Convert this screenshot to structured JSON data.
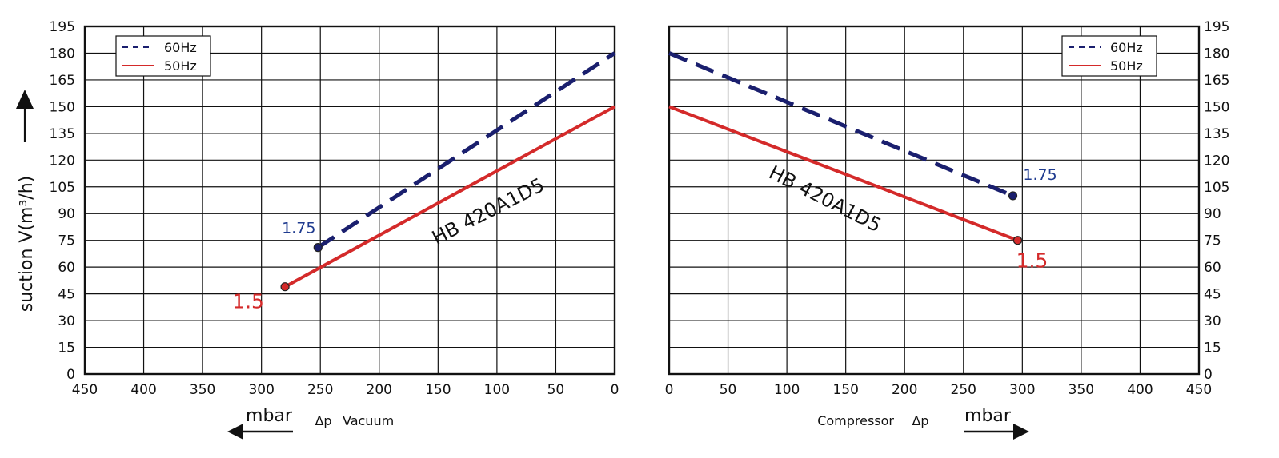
{
  "chart_data": [
    {
      "type": "line",
      "name": "vacuum",
      "xlabel_unit": "mbar",
      "xlabel_symbol": "Δp",
      "xlabel_text": "Vacuum",
      "ylabel": "suction V(m³/h)",
      "xlim": [
        450,
        0
      ],
      "x_reversed": true,
      "ylim": [
        0,
        195
      ],
      "x_ticks": [
        450,
        400,
        350,
        300,
        250,
        200,
        150,
        100,
        50,
        0
      ],
      "y_ticks": [
        0,
        15,
        30,
        45,
        60,
        75,
        90,
        105,
        120,
        135,
        150,
        165,
        180,
        195
      ],
      "grid": true,
      "legend_position": "top-left",
      "legend": [
        "60Hz",
        "50Hz"
      ],
      "annotation": "HB 420A1D5",
      "series": [
        {
          "name": "60Hz",
          "style": "dashed",
          "color": "#1a1f6e",
          "x": [
            252,
            0
          ],
          "y": [
            71,
            180
          ],
          "end_label": "1.75",
          "end_label_color": "#1f3b8f"
        },
        {
          "name": "50Hz",
          "style": "solid",
          "color": "#d42a2a",
          "x": [
            280,
            0
          ],
          "y": [
            49,
            150
          ],
          "end_label": "1.5",
          "end_label_color": "#d42a2a"
        }
      ]
    },
    {
      "type": "line",
      "name": "compressor",
      "xlabel_unit": "mbar",
      "xlabel_symbol": "Δp",
      "xlabel_text": "Compressor",
      "xlim": [
        0,
        450
      ],
      "ylim": [
        0,
        195
      ],
      "x_ticks": [
        0,
        50,
        100,
        150,
        200,
        250,
        300,
        350,
        400,
        450
      ],
      "y_ticks": [
        0,
        15,
        30,
        45,
        60,
        75,
        90,
        105,
        120,
        135,
        150,
        165,
        180,
        195
      ],
      "grid": true,
      "legend_position": "top-right",
      "legend": [
        "60Hz",
        "50Hz"
      ],
      "annotation": "HB 420A1D5",
      "series": [
        {
          "name": "60Hz",
          "style": "dashed",
          "color": "#1a1f6e",
          "x": [
            0,
            292
          ],
          "y": [
            180,
            100
          ],
          "end_label": "1.75",
          "end_label_color": "#1f3b8f"
        },
        {
          "name": "50Hz",
          "style": "solid",
          "color": "#d42a2a",
          "x": [
            0,
            296
          ],
          "y": [
            150,
            75
          ],
          "end_label": "1.5",
          "end_label_color": "#d42a2a"
        }
      ]
    }
  ]
}
